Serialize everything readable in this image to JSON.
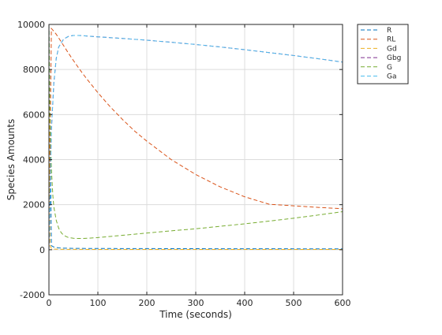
{
  "chart_data": {
    "type": "line",
    "title": "",
    "xlabel": "Time (seconds)",
    "ylabel": "Species Amounts",
    "xlim": [
      0,
      600
    ],
    "ylim": [
      -2000,
      10000
    ],
    "xticks": [
      0,
      100,
      200,
      300,
      400,
      500,
      600
    ],
    "yticks": [
      -2000,
      0,
      2000,
      4000,
      6000,
      8000,
      10000
    ],
    "grid": true,
    "legend_position": "outside-top-right",
    "series": [
      {
        "name": "R",
        "color": "#0072bd",
        "x": [
          0,
          5,
          10,
          20,
          30,
          50,
          100,
          200,
          300,
          400,
          500,
          600
        ],
        "y": [
          10000,
          180,
          120,
          80,
          70,
          60,
          55,
          50,
          45,
          42,
          40,
          38
        ]
      },
      {
        "name": "RL",
        "color": "#d95319",
        "x": [
          0,
          5,
          10,
          15,
          20,
          30,
          40,
          50,
          60,
          70,
          80,
          100,
          125,
          150,
          175,
          200,
          250,
          300,
          350,
          400,
          450,
          500,
          550,
          600
        ],
        "y": [
          0,
          9820,
          9700,
          9560,
          9400,
          9060,
          8720,
          8400,
          8090,
          7790,
          7510,
          6970,
          6350,
          5790,
          5270,
          4820,
          4000,
          3340,
          2790,
          2350,
          2020,
          1950,
          1880,
          1820
        ]
      },
      {
        "name": "Gd",
        "color": "#edb120",
        "x": [
          0,
          2,
          5,
          10,
          20,
          50,
          100,
          200,
          300,
          400,
          500,
          600
        ],
        "y": [
          10000,
          200,
          60,
          30,
          20,
          15,
          12,
          10,
          10,
          10,
          10,
          10
        ]
      },
      {
        "name": "Gbg",
        "color": "#7e2f8e",
        "x": [
          0,
          5,
          10,
          15,
          20,
          30,
          40,
          50,
          60,
          70,
          80,
          100,
          150,
          200,
          250,
          300,
          350,
          400,
          450,
          500,
          550,
          600
        ],
        "y": [
          0,
          5300,
          7400,
          8500,
          9000,
          9350,
          9470,
          9510,
          9510,
          9500,
          9480,
          9450,
          9380,
          9300,
          9210,
          9110,
          9000,
          8880,
          8750,
          8620,
          8480,
          8330
        ]
      },
      {
        "name": "G",
        "color": "#77ac30",
        "x": [
          0,
          2,
          5,
          8,
          10,
          15,
          20,
          25,
          30,
          40,
          50,
          60,
          70,
          80,
          100,
          125,
          150,
          200,
          250,
          300,
          350,
          400,
          450,
          500,
          550,
          600
        ],
        "y": [
          10000,
          6000,
          3600,
          2400,
          1900,
          1300,
          950,
          760,
          640,
          540,
          510,
          500,
          500,
          510,
          540,
          590,
          640,
          740,
          840,
          930,
          1040,
          1150,
          1270,
          1400,
          1540,
          1690
        ]
      },
      {
        "name": "Ga",
        "color": "#4dbeee",
        "x": [
          0,
          5,
          10,
          15,
          20,
          30,
          40,
          50,
          60,
          70,
          80,
          100,
          150,
          200,
          250,
          300,
          350,
          400,
          450,
          500,
          550,
          600
        ],
        "y": [
          0,
          5300,
          7400,
          8500,
          9000,
          9350,
          9470,
          9510,
          9510,
          9500,
          9480,
          9450,
          9380,
          9300,
          9210,
          9110,
          9000,
          8880,
          8750,
          8620,
          8480,
          8330
        ]
      }
    ]
  }
}
